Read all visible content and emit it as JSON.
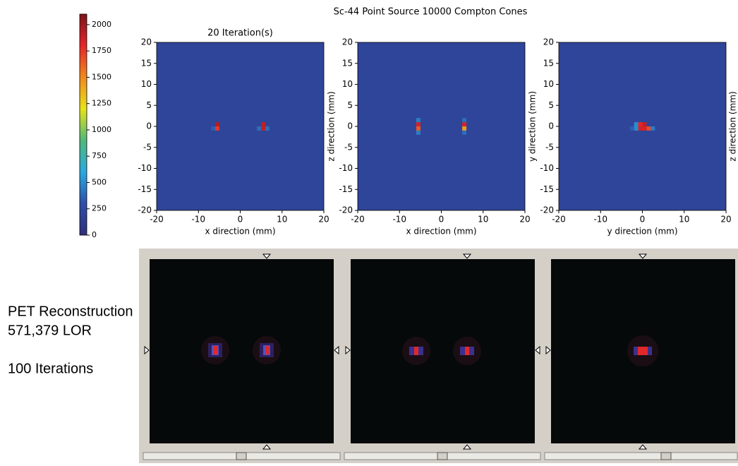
{
  "title": "Sc-44 Point Source 10000 Compton Cones",
  "colorbar": {
    "type": "colorbar",
    "ylim": [
      0,
      2100
    ],
    "yticks": [
      0,
      250,
      500,
      750,
      1000,
      1250,
      1500,
      1750,
      2000
    ],
    "colormap": [
      "#30307a",
      "#2e4fa8",
      "#2aa9df",
      "#4fb87a",
      "#e8e21c",
      "#f08a1e",
      "#e5262a",
      "#7a1518"
    ]
  },
  "panels": [
    {
      "type": "heatmap",
      "title": "20 Iteration(s)",
      "xlabel": "x direction (mm)",
      "xlim": [
        -20,
        20
      ],
      "ylim": [
        -20,
        20
      ],
      "xticks": [
        -20,
        -10,
        0,
        10,
        20
      ],
      "yticks": [
        -20,
        -15,
        -10,
        -5,
        0,
        5,
        10,
        15,
        20
      ],
      "background": 200,
      "cells": [
        {
          "x": -5.5,
          "y": 0.5,
          "value": 1950
        },
        {
          "x": -5.5,
          "y": -0.5,
          "value": 1750
        },
        {
          "x": -6.5,
          "y": -0.5,
          "value": 350
        },
        {
          "x": 5.5,
          "y": 0.5,
          "value": 1900
        },
        {
          "x": 5.5,
          "y": -0.5,
          "value": 1900
        },
        {
          "x": 4.5,
          "y": -0.5,
          "value": 400
        },
        {
          "x": 6.5,
          "y": -0.5,
          "value": 400
        }
      ]
    },
    {
      "type": "heatmap",
      "xlabel": "x direction (mm)",
      "ylabel": "z direction (mm)",
      "xlim": [
        -20,
        20
      ],
      "ylim": [
        -20,
        20
      ],
      "xticks": [
        -20,
        -10,
        0,
        10,
        20
      ],
      "yticks": [
        -20,
        -15,
        -10,
        -5,
        0,
        5,
        10,
        15,
        20
      ],
      "background": 200,
      "cells": [
        {
          "x": -5.5,
          "y": 1.5,
          "value": 450
        },
        {
          "x": -5.5,
          "y": 0.5,
          "value": 1850
        },
        {
          "x": -5.5,
          "y": -0.5,
          "value": 1650
        },
        {
          "x": -5.5,
          "y": -1.5,
          "value": 450
        },
        {
          "x": 5.5,
          "y": 1.5,
          "value": 400
        },
        {
          "x": 5.5,
          "y": 0.5,
          "value": 1850
        },
        {
          "x": 5.5,
          "y": -0.5,
          "value": 1450
        },
        {
          "x": 5.5,
          "y": -1.5,
          "value": 400
        }
      ]
    },
    {
      "type": "heatmap",
      "xlabel": "y direction (mm)",
      "ylabel": "y direction (mm)",
      "y2label": "z direction (mm)",
      "xlim": [
        -20,
        20
      ],
      "ylim": [
        -20,
        20
      ],
      "xticks": [
        -20,
        -10,
        0,
        10,
        20
      ],
      "yticks": [
        -20,
        -15,
        -10,
        -5,
        0,
        5,
        10,
        15,
        20
      ],
      "background": 200,
      "cells": [
        {
          "x": -1.5,
          "y": 0.5,
          "value": 500
        },
        {
          "x": -1.5,
          "y": -0.5,
          "value": 500
        },
        {
          "x": -0.5,
          "y": 0.5,
          "value": 1800
        },
        {
          "x": -0.5,
          "y": -0.5,
          "value": 1850
        },
        {
          "x": 0.5,
          "y": 0.5,
          "value": 1900
        },
        {
          "x": 0.5,
          "y": -0.5,
          "value": 1850
        },
        {
          "x": 1.5,
          "y": -0.5,
          "value": 1700
        },
        {
          "x": 2.5,
          "y": -0.5,
          "value": 450
        },
        {
          "x": -2.5,
          "y": -0.5,
          "value": 350
        }
      ]
    }
  ],
  "pet": {
    "lines": [
      "PET Reconstruction",
      "571,379 LOR",
      "100 Iterations"
    ]
  }
}
